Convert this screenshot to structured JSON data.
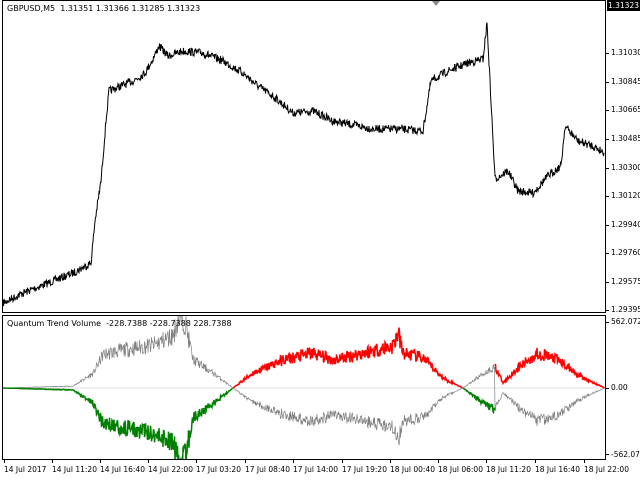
{
  "chart": {
    "title": "GBPUSD,M5",
    "ohlc": "1.31351 1.31366 1.31285 1.31323"
  },
  "price_axis": {
    "labels": [
      "1.31323",
      "1.31030",
      "1.30845",
      "1.30665",
      "1.30485",
      "1.30300",
      "1.30120",
      "1.29940",
      "1.29760",
      "1.29575",
      "1.29395"
    ],
    "current_price": "1.31323"
  },
  "indicator": {
    "name": "Quantum Trend Volume",
    "values": "-228.7388 -228.7388 228.7388",
    "axis_top": "562.0728",
    "axis_mid": "0.00",
    "axis_bottom": "-562.0728",
    "colors": {
      "bull": "#ff0000",
      "bear": "#008000",
      "neutral": "#808080"
    }
  },
  "time_axis": {
    "labels": [
      "14 Jul 2017",
      "14 Jul 11:20",
      "14 Jul 16:40",
      "14 Jul 22:00",
      "17 Jul 03:20",
      "17 Jul 08:40",
      "17 Jul 14:00",
      "17 Jul 19:20",
      "18 Jul 00:40",
      "18 Jul 06:00",
      "18 Jul 11:20",
      "18 Jul 16:40",
      "18 Jul 22:00"
    ]
  }
}
